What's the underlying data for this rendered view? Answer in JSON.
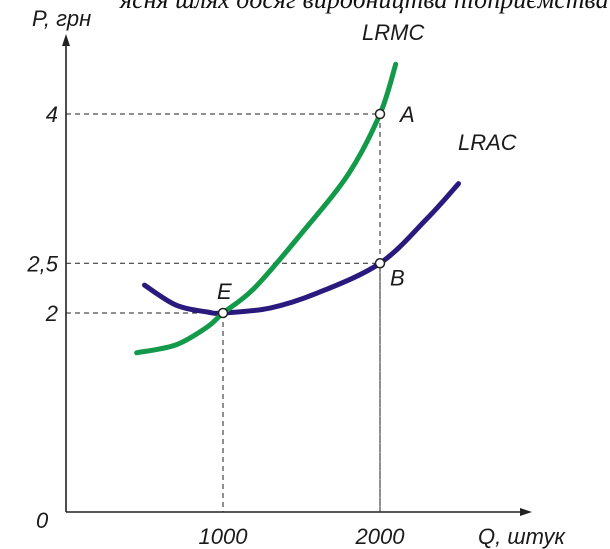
{
  "header_fragment": "ясня шлях досяг виробництва підприємства фір",
  "chart_data": {
    "type": "line",
    "title": "",
    "xlabel": "Q, штук",
    "ylabel": "P, грн",
    "origin_label": "0",
    "x_ticks": [
      {
        "value": 1000,
        "label": "1000"
      },
      {
        "value": 2000,
        "label": "2000"
      }
    ],
    "y_ticks": [
      {
        "value": 2,
        "label": "2"
      },
      {
        "value": 2.5,
        "label": "2,5"
      },
      {
        "value": 4,
        "label": "4"
      }
    ],
    "series": [
      {
        "name": "LRMC",
        "color": "#129a4a",
        "x": [
          450,
          700,
          900,
          1000,
          1200,
          1500,
          1800,
          2000,
          2100
        ],
        "y": [
          1.6,
          1.68,
          1.86,
          2.0,
          2.25,
          2.8,
          3.4,
          4.0,
          4.5
        ]
      },
      {
        "name": "LRAC",
        "color": "#2a1a7e",
        "x": [
          500,
          700,
          900,
          1000,
          1300,
          1600,
          2000,
          2300,
          2500
        ],
        "y": [
          2.28,
          2.08,
          2.01,
          2.0,
          2.05,
          2.2,
          2.5,
          2.95,
          3.3
        ]
      }
    ],
    "points": [
      {
        "label": "A",
        "x": 2000,
        "y": 4
      },
      {
        "label": "B",
        "x": 2000,
        "y": 2.5
      },
      {
        "label": "E",
        "x": 1000,
        "y": 2
      }
    ],
    "xlim": [
      0,
      2600
    ],
    "ylim": [
      0,
      4.6
    ],
    "grid": false
  }
}
